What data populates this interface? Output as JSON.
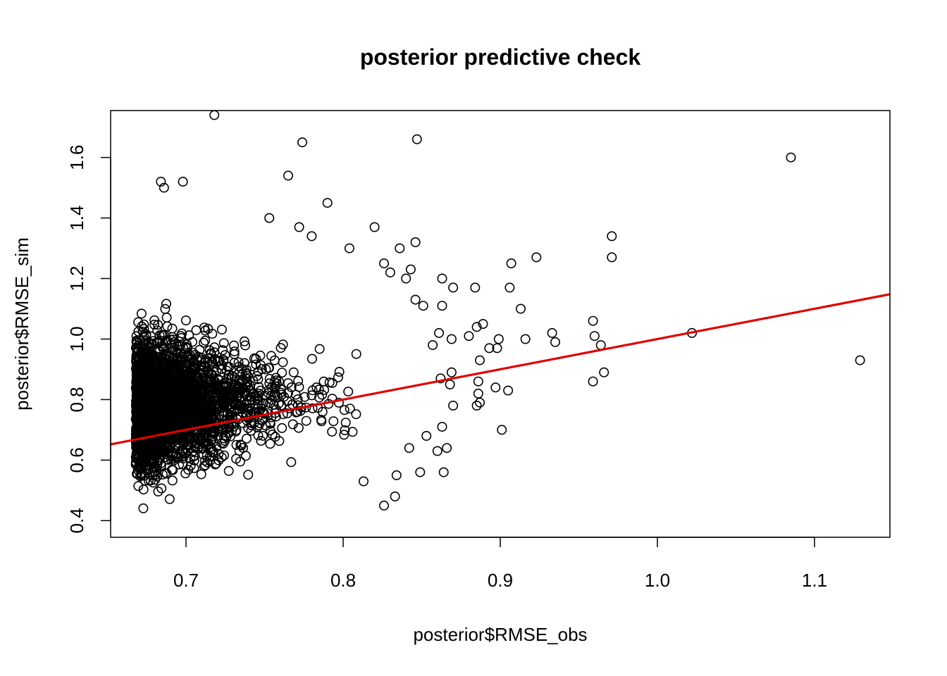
{
  "chart_data": {
    "type": "scatter",
    "title": "posterior predictive check",
    "xlabel": "posterior$RMSE_obs",
    "ylabel": "posterior$RMSE_sim",
    "xlim": [
      0.652,
      1.148
    ],
    "ylim": [
      0.345,
      1.755
    ],
    "x_ticks": [
      0.7,
      0.8,
      0.9,
      1.0,
      1.1
    ],
    "x_tick_labels": [
      "0.7",
      "0.8",
      "0.9",
      "1.0",
      "1.1"
    ],
    "y_ticks": [
      0.4,
      0.6,
      0.8,
      1.0,
      1.2,
      1.4,
      1.6
    ],
    "y_tick_labels": [
      "0.4",
      "0.6",
      "0.8",
      "1.0",
      "1.2",
      "1.4",
      "1.6"
    ],
    "grid": false,
    "legend": "none",
    "point_shape": "open-circle",
    "point_color": "#000000",
    "fit_line": {
      "type": "linear",
      "color": "#e00000",
      "x": [
        0.652,
        1.148
      ],
      "y": [
        0.652,
        1.148
      ]
    },
    "outliers": [
      {
        "x": 0.718,
        "y": 1.74
      },
      {
        "x": 0.847,
        "y": 1.66
      },
      {
        "x": 0.774,
        "y": 1.65
      },
      {
        "x": 1.085,
        "y": 1.6
      },
      {
        "x": 0.765,
        "y": 1.54
      },
      {
        "x": 0.684,
        "y": 1.52
      },
      {
        "x": 0.698,
        "y": 1.52
      },
      {
        "x": 0.686,
        "y": 1.5
      },
      {
        "x": 0.79,
        "y": 1.45
      },
      {
        "x": 0.753,
        "y": 1.4
      },
      {
        "x": 0.82,
        "y": 1.37
      },
      {
        "x": 0.772,
        "y": 1.37
      },
      {
        "x": 0.971,
        "y": 1.34
      },
      {
        "x": 0.78,
        "y": 1.34
      },
      {
        "x": 0.846,
        "y": 1.32
      },
      {
        "x": 0.971,
        "y": 1.27
      },
      {
        "x": 0.923,
        "y": 1.27
      },
      {
        "x": 0.907,
        "y": 1.25
      },
      {
        "x": 0.836,
        "y": 1.3
      },
      {
        "x": 0.804,
        "y": 1.3
      },
      {
        "x": 0.863,
        "y": 1.2
      },
      {
        "x": 0.906,
        "y": 1.17
      },
      {
        "x": 0.884,
        "y": 1.17
      },
      {
        "x": 0.87,
        "y": 1.17
      },
      {
        "x": 0.913,
        "y": 1.1
      },
      {
        "x": 0.863,
        "y": 1.11
      },
      {
        "x": 0.933,
        "y": 1.02
      },
      {
        "x": 0.935,
        "y": 0.99
      },
      {
        "x": 0.959,
        "y": 1.06
      },
      {
        "x": 0.96,
        "y": 1.01
      },
      {
        "x": 0.964,
        "y": 0.98
      },
      {
        "x": 1.022,
        "y": 1.02
      },
      {
        "x": 1.129,
        "y": 0.93
      },
      {
        "x": 0.966,
        "y": 0.89
      },
      {
        "x": 0.959,
        "y": 0.86
      },
      {
        "x": 0.901,
        "y": 0.7
      },
      {
        "x": 0.905,
        "y": 0.83
      },
      {
        "x": 0.897,
        "y": 0.84
      },
      {
        "x": 0.898,
        "y": 0.97
      },
      {
        "x": 0.893,
        "y": 0.97
      },
      {
        "x": 0.899,
        "y": 1.0
      },
      {
        "x": 0.916,
        "y": 1.0
      },
      {
        "x": 0.88,
        "y": 1.01
      },
      {
        "x": 0.889,
        "y": 1.05
      },
      {
        "x": 0.885,
        "y": 1.04
      },
      {
        "x": 0.869,
        "y": 1.0
      },
      {
        "x": 0.887,
        "y": 0.93
      },
      {
        "x": 0.887,
        "y": 0.79
      },
      {
        "x": 0.885,
        "y": 0.78
      },
      {
        "x": 0.886,
        "y": 0.82
      },
      {
        "x": 0.886,
        "y": 0.86
      },
      {
        "x": 0.868,
        "y": 0.85
      },
      {
        "x": 0.87,
        "y": 0.78
      },
      {
        "x": 0.864,
        "y": 0.56
      },
      {
        "x": 0.866,
        "y": 0.64
      },
      {
        "x": 0.853,
        "y": 0.68
      },
      {
        "x": 0.86,
        "y": 0.63
      },
      {
        "x": 0.863,
        "y": 0.71
      },
      {
        "x": 0.869,
        "y": 0.89
      },
      {
        "x": 0.862,
        "y": 0.87
      },
      {
        "x": 0.857,
        "y": 0.98
      },
      {
        "x": 0.861,
        "y": 1.02
      },
      {
        "x": 0.846,
        "y": 1.13
      },
      {
        "x": 0.851,
        "y": 1.11
      },
      {
        "x": 0.843,
        "y": 1.23
      },
      {
        "x": 0.826,
        "y": 1.25
      },
      {
        "x": 0.84,
        "y": 1.2
      },
      {
        "x": 0.83,
        "y": 1.22
      },
      {
        "x": 0.826,
        "y": 0.45
      },
      {
        "x": 0.833,
        "y": 0.48
      },
      {
        "x": 0.834,
        "y": 0.55
      },
      {
        "x": 0.813,
        "y": 0.53
      },
      {
        "x": 0.842,
        "y": 0.64
      },
      {
        "x": 0.849,
        "y": 0.56
      }
    ],
    "dense_cluster": {
      "description_free": true,
      "x_range": [
        0.668,
        0.79
      ],
      "y_center": 0.78,
      "y_spread": 0.14,
      "x_min_edge": 0.668
    }
  }
}
